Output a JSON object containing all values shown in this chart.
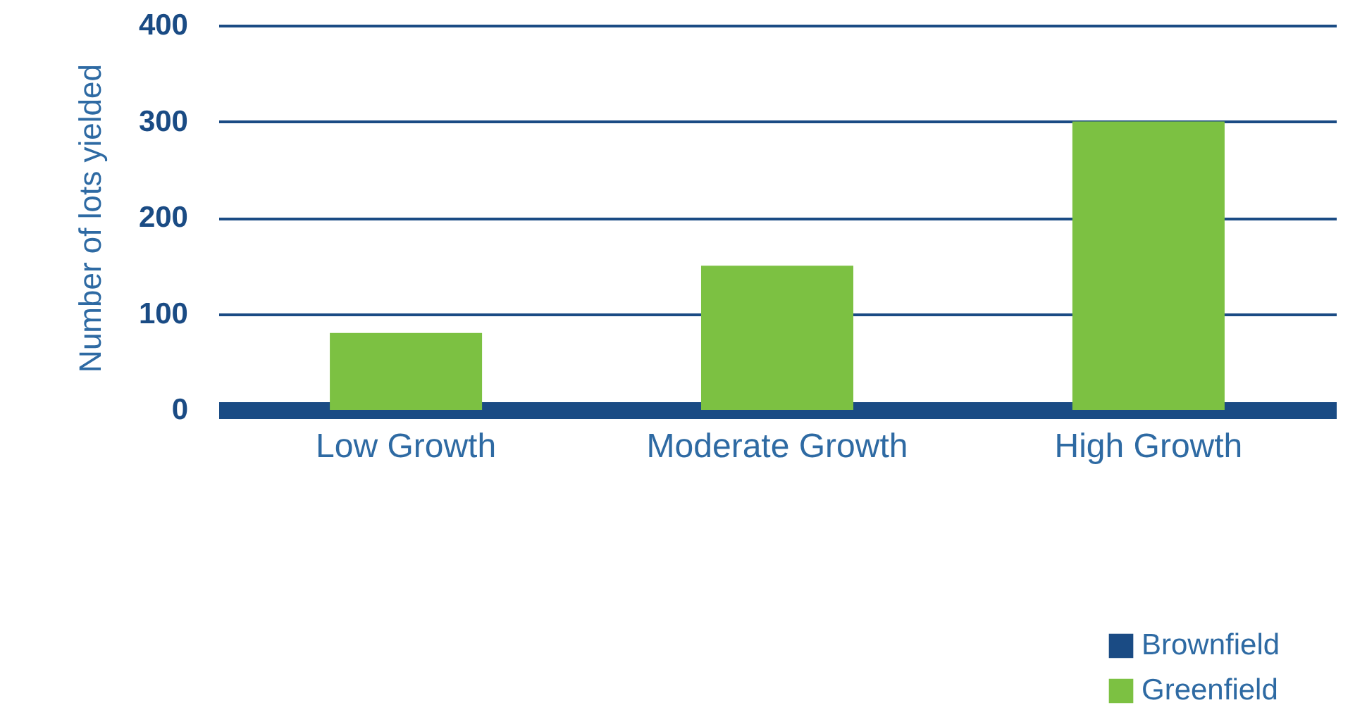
{
  "chart_data": {
    "type": "bar",
    "ylabel": "Number of lots yielded",
    "categories": [
      "Low Growth",
      "Moderate Growth",
      "High Growth"
    ],
    "series": [
      {
        "name": "Brownfield",
        "color": "#1a4b84",
        "values": [
          0,
          0,
          0
        ]
      },
      {
        "name": "Greenfield",
        "color": "#7cc142",
        "values": [
          80,
          150,
          300
        ]
      }
    ],
    "ylim": [
      0,
      400
    ],
    "yticks": [
      0,
      100,
      200,
      300,
      400
    ],
    "grid": "y",
    "legend": "bottom right"
  }
}
